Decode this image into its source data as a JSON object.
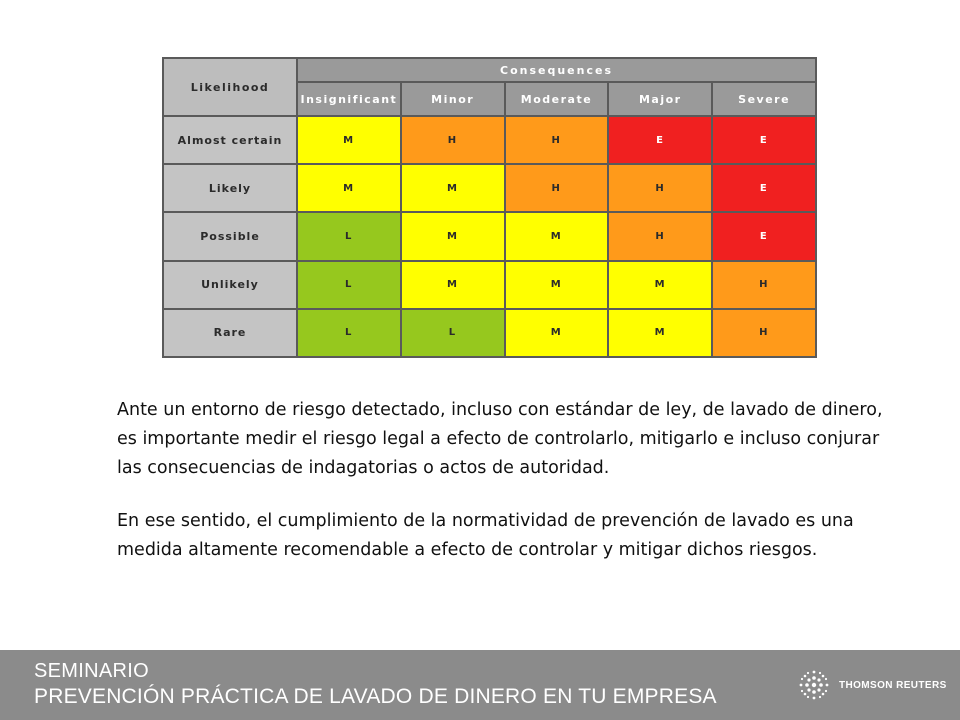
{
  "matrix": {
    "likelihood_label": "Likelihood",
    "consequences_label": "Consequences",
    "severity_columns": [
      "Insignificant",
      "Minor",
      "Moderate",
      "Major",
      "Severe"
    ],
    "rows": [
      {
        "label": "Almost certain",
        "cells": [
          "M",
          "H",
          "H",
          "E",
          "E"
        ]
      },
      {
        "label": "Likely",
        "cells": [
          "M",
          "M",
          "H",
          "H",
          "E"
        ]
      },
      {
        "label": "Possible",
        "cells": [
          "L",
          "M",
          "M",
          "H",
          "E"
        ]
      },
      {
        "label": "Unlikely",
        "cells": [
          "L",
          "M",
          "M",
          "M",
          "H"
        ]
      },
      {
        "label": "Rare",
        "cells": [
          "L",
          "L",
          "M",
          "M",
          "H"
        ]
      }
    ],
    "level_colors": {
      "L": "#96c81e",
      "M": "#ffff00",
      "H": "#ff9a1a",
      "E": "#f02020"
    }
  },
  "body": {
    "paragraph1": "Ante un entorno de riesgo detectado, incluso con estándar de ley, de lavado de dinero, es importante medir el riesgo legal a efecto de controlarlo, mitigarlo e incluso conjurar las consecuencias de indagatorias o actos de autoridad.",
    "paragraph2": "En ese sentido, el cumplimiento de la normatividad de prevención de lavado es una medida altamente recomendable a efecto de controlar y mitigar dichos riesgos."
  },
  "footer": {
    "line1": "SEMINARIO",
    "line2": "PREVENCIÓN PRÁCTICA DE LAVADO DE DINERO EN TU EMPRESA",
    "brand_name": "THOMSON REUTERS",
    "brand_logo_icon": "thomson-reuters-dot-logo-icon"
  }
}
